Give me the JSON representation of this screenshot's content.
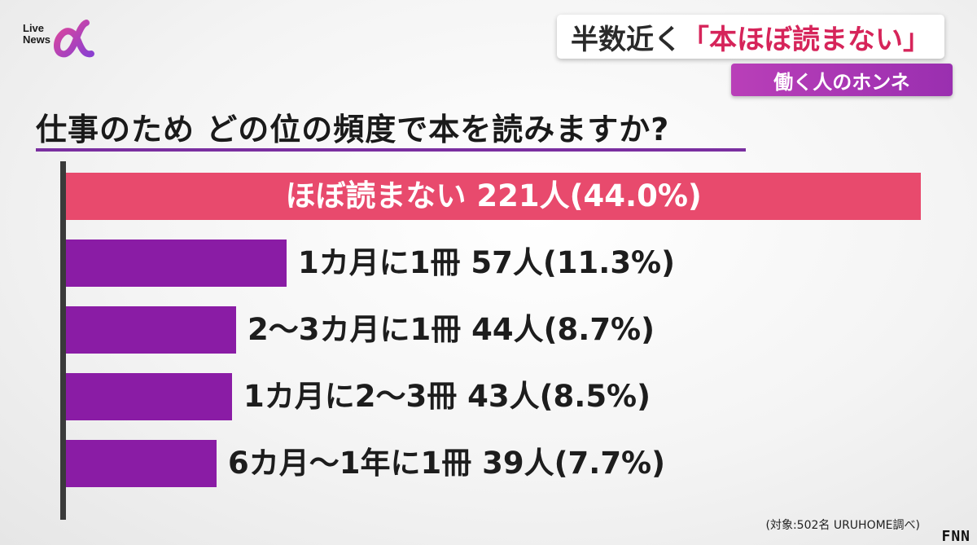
{
  "logo": {
    "text": "Live\nNews"
  },
  "headline": {
    "prefix": "半数近く",
    "highlight": "「本ほぼ読まない」"
  },
  "subtag": "働く人のホンネ",
  "chart_data": {
    "type": "bar",
    "title": "仕事のため どの位の頻度で本を読みますか?",
    "categories": [
      "ほぼ読まない",
      "1カ月に1冊",
      "2〜3カ月に1冊",
      "1カ月に2〜3冊",
      "6カ月〜1年に1冊"
    ],
    "values": [
      221,
      57,
      44,
      43,
      39
    ],
    "percent": [
      44.0,
      11.3,
      8.7,
      8.5,
      7.7
    ],
    "labels": [
      "ほぼ読まない 221人(44.0%)",
      "1カ月に1冊 57人(11.3%)",
      "2〜3カ月に1冊 44人(8.7%)",
      "1カ月に2〜3冊 43人(8.5%)",
      "6カ月〜1年に1冊 39人(7.7%)"
    ],
    "orientation": "horizontal",
    "xlim": [
      0,
      221
    ],
    "colors": {
      "highlight": "#e84a6d",
      "default": "#8a1ca5"
    }
  },
  "source": "(対象:502名 URUHOME調べ)",
  "corner_mark": "FNN"
}
